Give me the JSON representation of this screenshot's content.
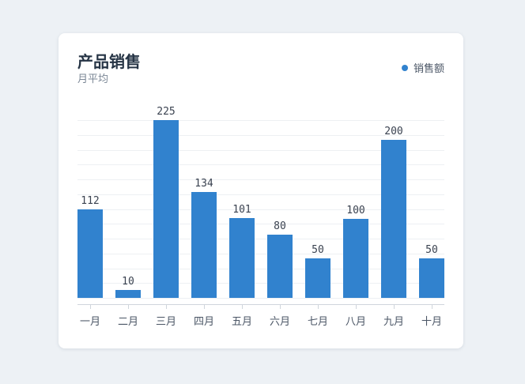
{
  "card": {
    "title": "产品销售",
    "subtitle": "月平均"
  },
  "legend": {
    "label": "销售额",
    "color": "#3182ce"
  },
  "chart_data": {
    "type": "bar",
    "title": "产品销售",
    "subtitle": "月平均",
    "categories": [
      "一月",
      "二月",
      "三月",
      "四月",
      "五月",
      "六月",
      "七月",
      "八月",
      "九月",
      "十月"
    ],
    "series": [
      {
        "name": "销售额",
        "color": "#3182ce",
        "values": [
          112,
          10,
          225,
          134,
          101,
          80,
          50,
          100,
          200,
          50
        ]
      }
    ],
    "ylim": [
      0,
      225
    ],
    "grid": true,
    "legend_position": "top-right",
    "data_labels": true
  }
}
